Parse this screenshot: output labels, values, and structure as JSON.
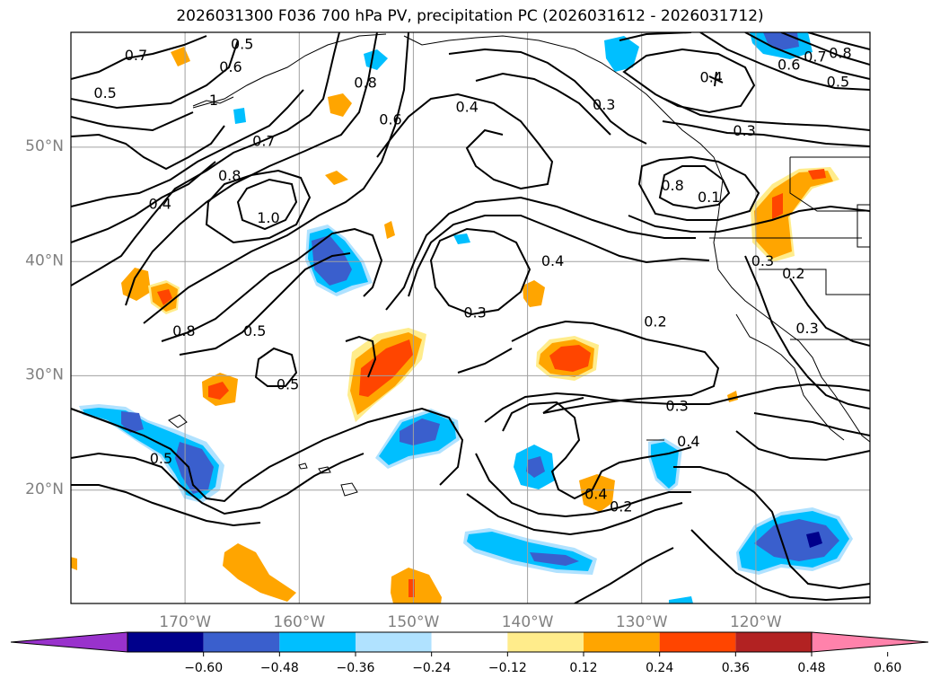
{
  "title": "2026031300 F036 700 hPa PV, precipitation PC (2026031612 - 2026031712)",
  "map": {
    "lon_range": [
      -180,
      -110
    ],
    "lat_range": [
      10,
      60
    ],
    "lat_ticks": [
      {
        "value": 20,
        "label": "20°N"
      },
      {
        "value": 30,
        "label": "30°N"
      },
      {
        "value": 40,
        "label": "40°N"
      },
      {
        "value": 50,
        "label": "50°N"
      }
    ],
    "lon_ticks": [
      {
        "value": -170,
        "label": "170°W"
      },
      {
        "value": -160,
        "label": "160°W"
      },
      {
        "value": -150,
        "label": "150°W"
      },
      {
        "value": -140,
        "label": "140°W"
      },
      {
        "value": -130,
        "label": "130°W"
      },
      {
        "value": -120,
        "label": "120°W"
      }
    ],
    "grid": true
  },
  "colorbar": {
    "ticks": [
      "−0.60",
      "−0.48",
      "−0.36",
      "−0.24",
      "−0.12",
      "0.12",
      "0.24",
      "0.36",
      "0.48",
      "0.60"
    ],
    "colors": [
      "#9932cc",
      "#00008b",
      "#3a5fcd",
      "#00bfff",
      "#b0e2ff",
      "#ffffff",
      "#ffec8b",
      "#ffa500",
      "#ff4500",
      "#b22222",
      "#ff82ab"
    ]
  },
  "contour_labels": [
    {
      "text": "0.7",
      "lon": -174.3,
      "lat": 57.9
    },
    {
      "text": "0.5",
      "lon": -165.0,
      "lat": 58.9
    },
    {
      "text": "0.6",
      "lon": -166.0,
      "lat": 56.9
    },
    {
      "text": "0.5",
      "lon": -177.0,
      "lat": 54.6
    },
    {
      "text": "1",
      "lon": -167.5,
      "lat": 54.0
    },
    {
      "text": "0.8",
      "lon": -154.2,
      "lat": 55.5
    },
    {
      "text": "0.6",
      "lon": -152.0,
      "lat": 52.3
    },
    {
      "text": "0.7",
      "lon": -163.1,
      "lat": 50.4
    },
    {
      "text": "0.8",
      "lon": -166.1,
      "lat": 47.4
    },
    {
      "text": "0.4",
      "lon": -172.2,
      "lat": 44.9
    },
    {
      "text": "1.0",
      "lon": -162.7,
      "lat": 43.7
    },
    {
      "text": "0.4",
      "lon": -145.3,
      "lat": 53.4
    },
    {
      "text": "0.3",
      "lon": -133.3,
      "lat": 53.6
    },
    {
      "text": "0.4",
      "lon": -123.9,
      "lat": 56.0
    },
    {
      "text": "0.6",
      "lon": -117.1,
      "lat": 57.1
    },
    {
      "text": "0.7",
      "lon": -114.8,
      "lat": 57.8
    },
    {
      "text": "0.8",
      "lon": -112.6,
      "lat": 58.1
    },
    {
      "text": "0.5",
      "lon": -112.8,
      "lat": 55.6
    },
    {
      "text": "0.3",
      "lon": -121.0,
      "lat": 51.3
    },
    {
      "text": "0.1",
      "lon": -124.1,
      "lat": 45.5
    },
    {
      "text": "0.8",
      "lon": -127.3,
      "lat": 46.5
    },
    {
      "text": "0.4",
      "lon": -137.8,
      "lat": 39.9
    },
    {
      "text": "0.3",
      "lon": -119.4,
      "lat": 39.9
    },
    {
      "text": "0.2",
      "lon": -116.7,
      "lat": 38.8
    },
    {
      "text": "0.3",
      "lon": -144.6,
      "lat": 35.4
    },
    {
      "text": "0.2",
      "lon": -128.8,
      "lat": 34.6
    },
    {
      "text": "0.3",
      "lon": -115.5,
      "lat": 34.0
    },
    {
      "text": "0.8",
      "lon": -170.1,
      "lat": 33.8
    },
    {
      "text": "0.5",
      "lon": -163.9,
      "lat": 33.8
    },
    {
      "text": "0.5",
      "lon": -161.0,
      "lat": 29.1
    },
    {
      "text": "0.3",
      "lon": -126.9,
      "lat": 27.2
    },
    {
      "text": "0.4",
      "lon": -125.9,
      "lat": 24.1
    },
    {
      "text": "0.5",
      "lon": -172.1,
      "lat": 22.6
    },
    {
      "text": "0.4",
      "lon": -134.0,
      "lat": 19.5
    },
    {
      "text": "0.2",
      "lon": -131.8,
      "lat": 18.4
    }
  ]
}
